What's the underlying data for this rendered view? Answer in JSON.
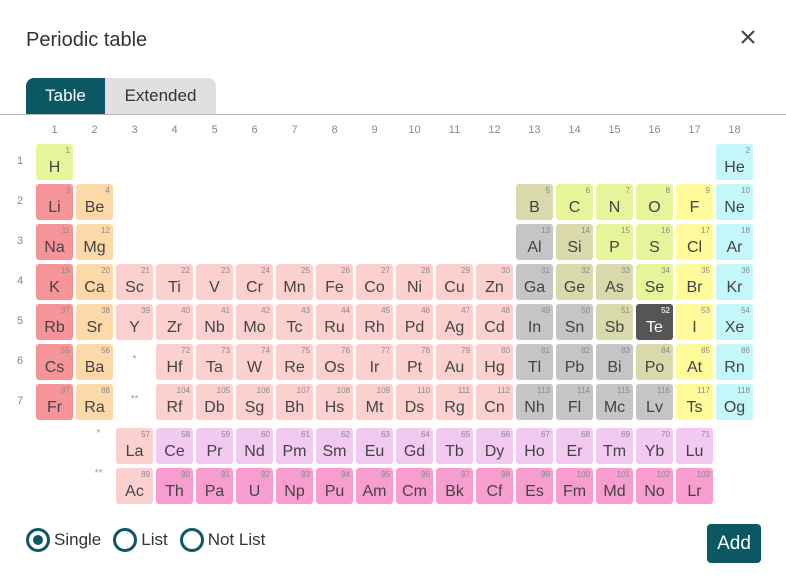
{
  "dialog": {
    "title": "Periodic table",
    "tabs": [
      {
        "label": "Table",
        "active": true
      },
      {
        "label": "Extended",
        "active": false
      }
    ],
    "selection_modes": [
      {
        "label": "Single",
        "selected": true
      },
      {
        "label": "List",
        "selected": false
      },
      {
        "label": "Not List",
        "selected": false
      }
    ],
    "add_label": "Add",
    "accent_color": "#0b5864"
  },
  "table": {
    "groups": [
      "1",
      "2",
      "3",
      "4",
      "5",
      "6",
      "7",
      "8",
      "9",
      "10",
      "11",
      "12",
      "13",
      "14",
      "15",
      "16",
      "17",
      "18"
    ],
    "periods": [
      "1",
      "2",
      "3",
      "4",
      "5",
      "6",
      "7"
    ],
    "lanthanide_marker": "*",
    "actinide_marker": "**",
    "selected_element": "Te",
    "category_colors": {
      "nonmetal": "#e7f59a",
      "alkali": "#f5959a",
      "alkaline": "#fdd8a8",
      "transition": "#fdd0d0",
      "metalloid": "#d9d9ac",
      "post_transition": "#c5c5c5",
      "noble": "#c3f7f9",
      "halogen": "#fffb9b",
      "lanthanide": "#f1c9f1",
      "actinide": "#f79dd0",
      "unknown": "#d9d9d9",
      "selected": "#555555"
    },
    "elements": [
      {
        "n": "1",
        "s": "H",
        "c": "nonmetal"
      },
      {
        "n": "2",
        "s": "He",
        "c": "noble"
      },
      {
        "n": "3",
        "s": "Li",
        "c": "alkali"
      },
      {
        "n": "4",
        "s": "Be",
        "c": "alkaline"
      },
      {
        "n": "5",
        "s": "B",
        "c": "metalloid"
      },
      {
        "n": "6",
        "s": "C",
        "c": "nonmetal"
      },
      {
        "n": "7",
        "s": "N",
        "c": "nonmetal"
      },
      {
        "n": "8",
        "s": "O",
        "c": "nonmetal"
      },
      {
        "n": "9",
        "s": "F",
        "c": "halogen"
      },
      {
        "n": "10",
        "s": "Ne",
        "c": "noble"
      },
      {
        "n": "11",
        "s": "Na",
        "c": "alkali"
      },
      {
        "n": "12",
        "s": "Mg",
        "c": "alkaline"
      },
      {
        "n": "13",
        "s": "Al",
        "c": "post_transition"
      },
      {
        "n": "14",
        "s": "Si",
        "c": "metalloid"
      },
      {
        "n": "15",
        "s": "P",
        "c": "nonmetal"
      },
      {
        "n": "16",
        "s": "S",
        "c": "nonmetal"
      },
      {
        "n": "17",
        "s": "Cl",
        "c": "halogen"
      },
      {
        "n": "18",
        "s": "Ar",
        "c": "noble"
      },
      {
        "n": "19",
        "s": "K",
        "c": "alkali"
      },
      {
        "n": "20",
        "s": "Ca",
        "c": "alkaline"
      },
      {
        "n": "21",
        "s": "Sc",
        "c": "transition"
      },
      {
        "n": "22",
        "s": "Ti",
        "c": "transition"
      },
      {
        "n": "23",
        "s": "V",
        "c": "transition"
      },
      {
        "n": "24",
        "s": "Cr",
        "c": "transition"
      },
      {
        "n": "25",
        "s": "Mn",
        "c": "transition"
      },
      {
        "n": "26",
        "s": "Fe",
        "c": "transition"
      },
      {
        "n": "27",
        "s": "Co",
        "c": "transition"
      },
      {
        "n": "28",
        "s": "Ni",
        "c": "transition"
      },
      {
        "n": "29",
        "s": "Cu",
        "c": "transition"
      },
      {
        "n": "30",
        "s": "Zn",
        "c": "transition"
      },
      {
        "n": "31",
        "s": "Ga",
        "c": "post_transition"
      },
      {
        "n": "32",
        "s": "Ge",
        "c": "metalloid"
      },
      {
        "n": "33",
        "s": "As",
        "c": "metalloid"
      },
      {
        "n": "34",
        "s": "Se",
        "c": "nonmetal"
      },
      {
        "n": "35",
        "s": "Br",
        "c": "halogen"
      },
      {
        "n": "36",
        "s": "Kr",
        "c": "noble"
      },
      {
        "n": "37",
        "s": "Rb",
        "c": "alkali"
      },
      {
        "n": "38",
        "s": "Sr",
        "c": "alkaline"
      },
      {
        "n": "39",
        "s": "Y",
        "c": "transition"
      },
      {
        "n": "40",
        "s": "Zr",
        "c": "transition"
      },
      {
        "n": "41",
        "s": "Nb",
        "c": "transition"
      },
      {
        "n": "42",
        "s": "Mo",
        "c": "transition"
      },
      {
        "n": "43",
        "s": "Tc",
        "c": "transition"
      },
      {
        "n": "44",
        "s": "Ru",
        "c": "transition"
      },
      {
        "n": "45",
        "s": "Rh",
        "c": "transition"
      },
      {
        "n": "46",
        "s": "Pd",
        "c": "transition"
      },
      {
        "n": "47",
        "s": "Ag",
        "c": "transition"
      },
      {
        "n": "48",
        "s": "Cd",
        "c": "transition"
      },
      {
        "n": "49",
        "s": "In",
        "c": "post_transition"
      },
      {
        "n": "50",
        "s": "Sn",
        "c": "post_transition"
      },
      {
        "n": "51",
        "s": "Sb",
        "c": "metalloid"
      },
      {
        "n": "52",
        "s": "Te",
        "c": "selected"
      },
      {
        "n": "53",
        "s": "I",
        "c": "halogen"
      },
      {
        "n": "54",
        "s": "Xe",
        "c": "noble"
      },
      {
        "n": "55",
        "s": "Cs",
        "c": "alkali"
      },
      {
        "n": "56",
        "s": "Ba",
        "c": "alkaline"
      },
      {
        "n": "72",
        "s": "Hf",
        "c": "transition"
      },
      {
        "n": "73",
        "s": "Ta",
        "c": "transition"
      },
      {
        "n": "74",
        "s": "W",
        "c": "transition"
      },
      {
        "n": "75",
        "s": "Re",
        "c": "transition"
      },
      {
        "n": "76",
        "s": "Os",
        "c": "transition"
      },
      {
        "n": "77",
        "s": "Ir",
        "c": "transition"
      },
      {
        "n": "78",
        "s": "Pt",
        "c": "transition"
      },
      {
        "n": "79",
        "s": "Au",
        "c": "transition"
      },
      {
        "n": "80",
        "s": "Hg",
        "c": "transition"
      },
      {
        "n": "81",
        "s": "Tl",
        "c": "post_transition"
      },
      {
        "n": "82",
        "s": "Pb",
        "c": "post_transition"
      },
      {
        "n": "83",
        "s": "Bi",
        "c": "post_transition"
      },
      {
        "n": "84",
        "s": "Po",
        "c": "metalloid"
      },
      {
        "n": "85",
        "s": "At",
        "c": "halogen"
      },
      {
        "n": "86",
        "s": "Rn",
        "c": "noble"
      },
      {
        "n": "87",
        "s": "Fr",
        "c": "alkali"
      },
      {
        "n": "88",
        "s": "Ra",
        "c": "alkaline"
      },
      {
        "n": "104",
        "s": "Rf",
        "c": "transition"
      },
      {
        "n": "105",
        "s": "Db",
        "c": "transition"
      },
      {
        "n": "106",
        "s": "Sg",
        "c": "transition"
      },
      {
        "n": "107",
        "s": "Bh",
        "c": "transition"
      },
      {
        "n": "108",
        "s": "Hs",
        "c": "transition"
      },
      {
        "n": "109",
        "s": "Mt",
        "c": "transition"
      },
      {
        "n": "110",
        "s": "Ds",
        "c": "transition"
      },
      {
        "n": "111",
        "s": "Rg",
        "c": "transition"
      },
      {
        "n": "112",
        "s": "Cn",
        "c": "transition"
      },
      {
        "n": "113",
        "s": "Nh",
        "c": "post_transition"
      },
      {
        "n": "114",
        "s": "Fl",
        "c": "post_transition"
      },
      {
        "n": "115",
        "s": "Mc",
        "c": "post_transition"
      },
      {
        "n": "116",
        "s": "Lv",
        "c": "post_transition"
      },
      {
        "n": "117",
        "s": "Ts",
        "c": "halogen"
      },
      {
        "n": "118",
        "s": "Og",
        "c": "noble"
      },
      {
        "n": "57",
        "s": "La",
        "c": "transition"
      },
      {
        "n": "58",
        "s": "Ce",
        "c": "lanthanide"
      },
      {
        "n": "59",
        "s": "Pr",
        "c": "lanthanide"
      },
      {
        "n": "60",
        "s": "Nd",
        "c": "lanthanide"
      },
      {
        "n": "61",
        "s": "Pm",
        "c": "lanthanide"
      },
      {
        "n": "62",
        "s": "Sm",
        "c": "lanthanide"
      },
      {
        "n": "63",
        "s": "Eu",
        "c": "lanthanide"
      },
      {
        "n": "64",
        "s": "Gd",
        "c": "lanthanide"
      },
      {
        "n": "65",
        "s": "Tb",
        "c": "lanthanide"
      },
      {
        "n": "66",
        "s": "Dy",
        "c": "lanthanide"
      },
      {
        "n": "67",
        "s": "Ho",
        "c": "lanthanide"
      },
      {
        "n": "68",
        "s": "Er",
        "c": "lanthanide"
      },
      {
        "n": "69",
        "s": "Tm",
        "c": "lanthanide"
      },
      {
        "n": "70",
        "s": "Yb",
        "c": "lanthanide"
      },
      {
        "n": "71",
        "s": "Lu",
        "c": "lanthanide"
      },
      {
        "n": "89",
        "s": "Ac",
        "c": "transition"
      },
      {
        "n": "90",
        "s": "Th",
        "c": "actinide"
      },
      {
        "n": "91",
        "s": "Pa",
        "c": "actinide"
      },
      {
        "n": "92",
        "s": "U",
        "c": "actinide"
      },
      {
        "n": "93",
        "s": "Np",
        "c": "actinide"
      },
      {
        "n": "94",
        "s": "Pu",
        "c": "actinide"
      },
      {
        "n": "95",
        "s": "Am",
        "c": "actinide"
      },
      {
        "n": "96",
        "s": "Cm",
        "c": "actinide"
      },
      {
        "n": "97",
        "s": "Bk",
        "c": "actinide"
      },
      {
        "n": "98",
        "s": "Cf",
        "c": "actinide"
      },
      {
        "n": "99",
        "s": "Es",
        "c": "actinide"
      },
      {
        "n": "100",
        "s": "Fm",
        "c": "actinide"
      },
      {
        "n": "101",
        "s": "Md",
        "c": "actinide"
      },
      {
        "n": "102",
        "s": "No",
        "c": "actinide"
      },
      {
        "n": "103",
        "s": "Lr",
        "c": "actinide"
      }
    ]
  }
}
